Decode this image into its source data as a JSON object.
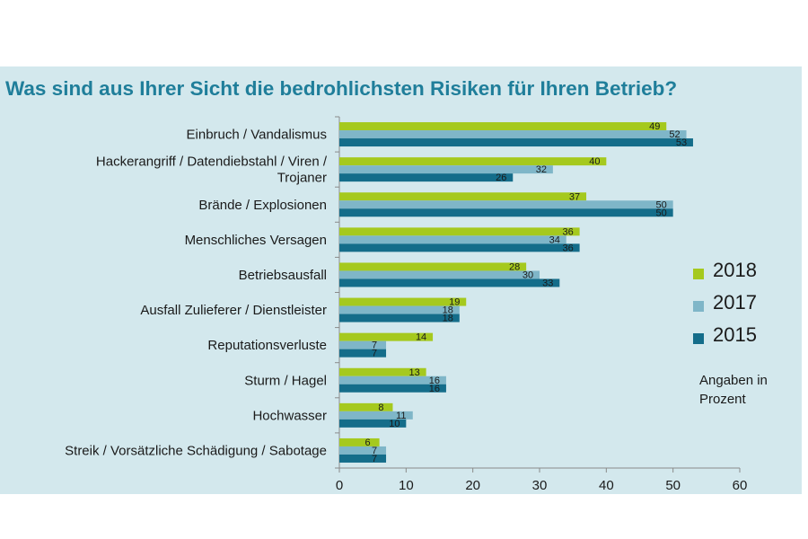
{
  "chart_data": {
    "type": "bar",
    "orientation": "horizontal",
    "title": "Was sind aus Ihrer Sicht die bedrohlichsten Risiken für Ihren Betrieb?",
    "categories": [
      [
        "Einbruch / Vandalismus"
      ],
      [
        "Hackerangriff / Datendiebstahl / Viren /",
        "Trojaner"
      ],
      [
        "Brände / Explosionen"
      ],
      [
        "Menschliches Versagen"
      ],
      [
        "Betriebsausfall"
      ],
      [
        "Ausfall Zulieferer / Dienstleister"
      ],
      [
        "Reputationsverluste"
      ],
      [
        "Sturm / Hagel"
      ],
      [
        "Hochwasser"
      ],
      [
        "Streik / Vorsätzliche Schädigung / Sabotage"
      ]
    ],
    "series": [
      {
        "name": "2018",
        "color": "#a5c91e",
        "values": [
          49,
          40,
          37,
          36,
          28,
          19,
          14,
          13,
          8,
          6
        ]
      },
      {
        "name": "2017",
        "color": "#7fb6c8",
        "values": [
          52,
          32,
          50,
          34,
          30,
          18,
          7,
          16,
          11,
          7
        ]
      },
      {
        "name": "2015",
        "color": "#146d8a",
        "values": [
          53,
          26,
          50,
          36,
          33,
          18,
          7,
          16,
          10,
          7
        ]
      }
    ],
    "xlim": [
      0,
      60
    ],
    "xticks": [
      0,
      10,
      20,
      30,
      40,
      50,
      60
    ],
    "grid": false,
    "legend_position": "right"
  },
  "note": "Angaben in Prozent"
}
